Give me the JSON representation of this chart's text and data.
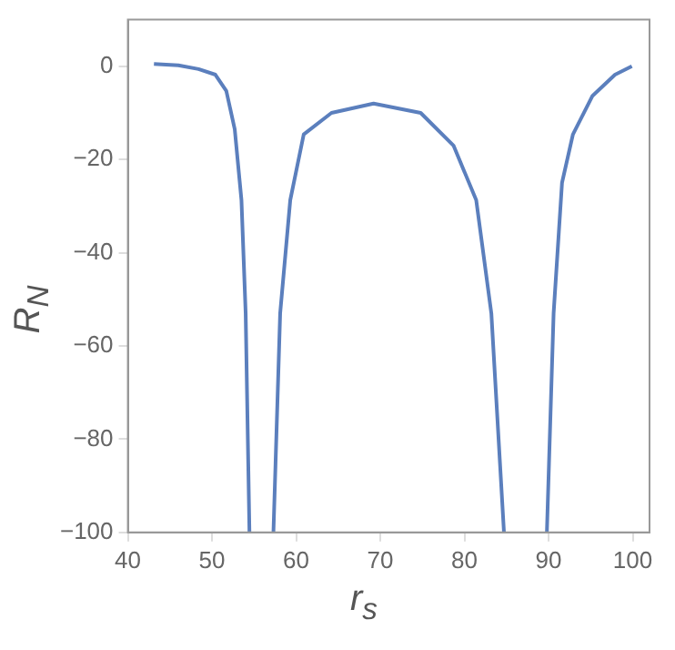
{
  "chart_data": {
    "type": "line",
    "xlabel": "r$_{s}$",
    "ylabel": "R$_{N}$",
    "xlim": [
      40,
      102
    ],
    "xticks": [
      40,
      50,
      60,
      70,
      80,
      90,
      100
    ],
    "ylim": [
      -100,
      10
    ],
    "yticks": [
      -100,
      -80,
      -60,
      -40,
      -20,
      0
    ],
    "grid": false,
    "legend": false,
    "marker": "none",
    "line_style": "solid",
    "series": [
      {
        "color": "#5b7fbd",
        "x": [
          43.1,
          46,
          48.4,
          50.4,
          51.7,
          52.7,
          53.5,
          54.0,
          54.45,
          55.9,
          57.3,
          58.1,
          59.3,
          60.9,
          64.2,
          69.2,
          74.8,
          78.7,
          81.4,
          83.2,
          84.7,
          87.2,
          89.8,
          90.6,
          91.6,
          92.9,
          95.2,
          97.9,
          99.9
        ],
        "values": [
          0.5,
          0.2,
          -0.6,
          -1.8,
          -5.3,
          -13.5,
          -28.7,
          -53,
          -100,
          null,
          -100,
          -53,
          -28.7,
          -14.6,
          -10,
          -8,
          -10,
          -17,
          -28.7,
          -53,
          -100,
          null,
          -100,
          -53,
          -25,
          -14.6,
          -6.4,
          -1.8,
          0
        ]
      }
    ]
  }
}
